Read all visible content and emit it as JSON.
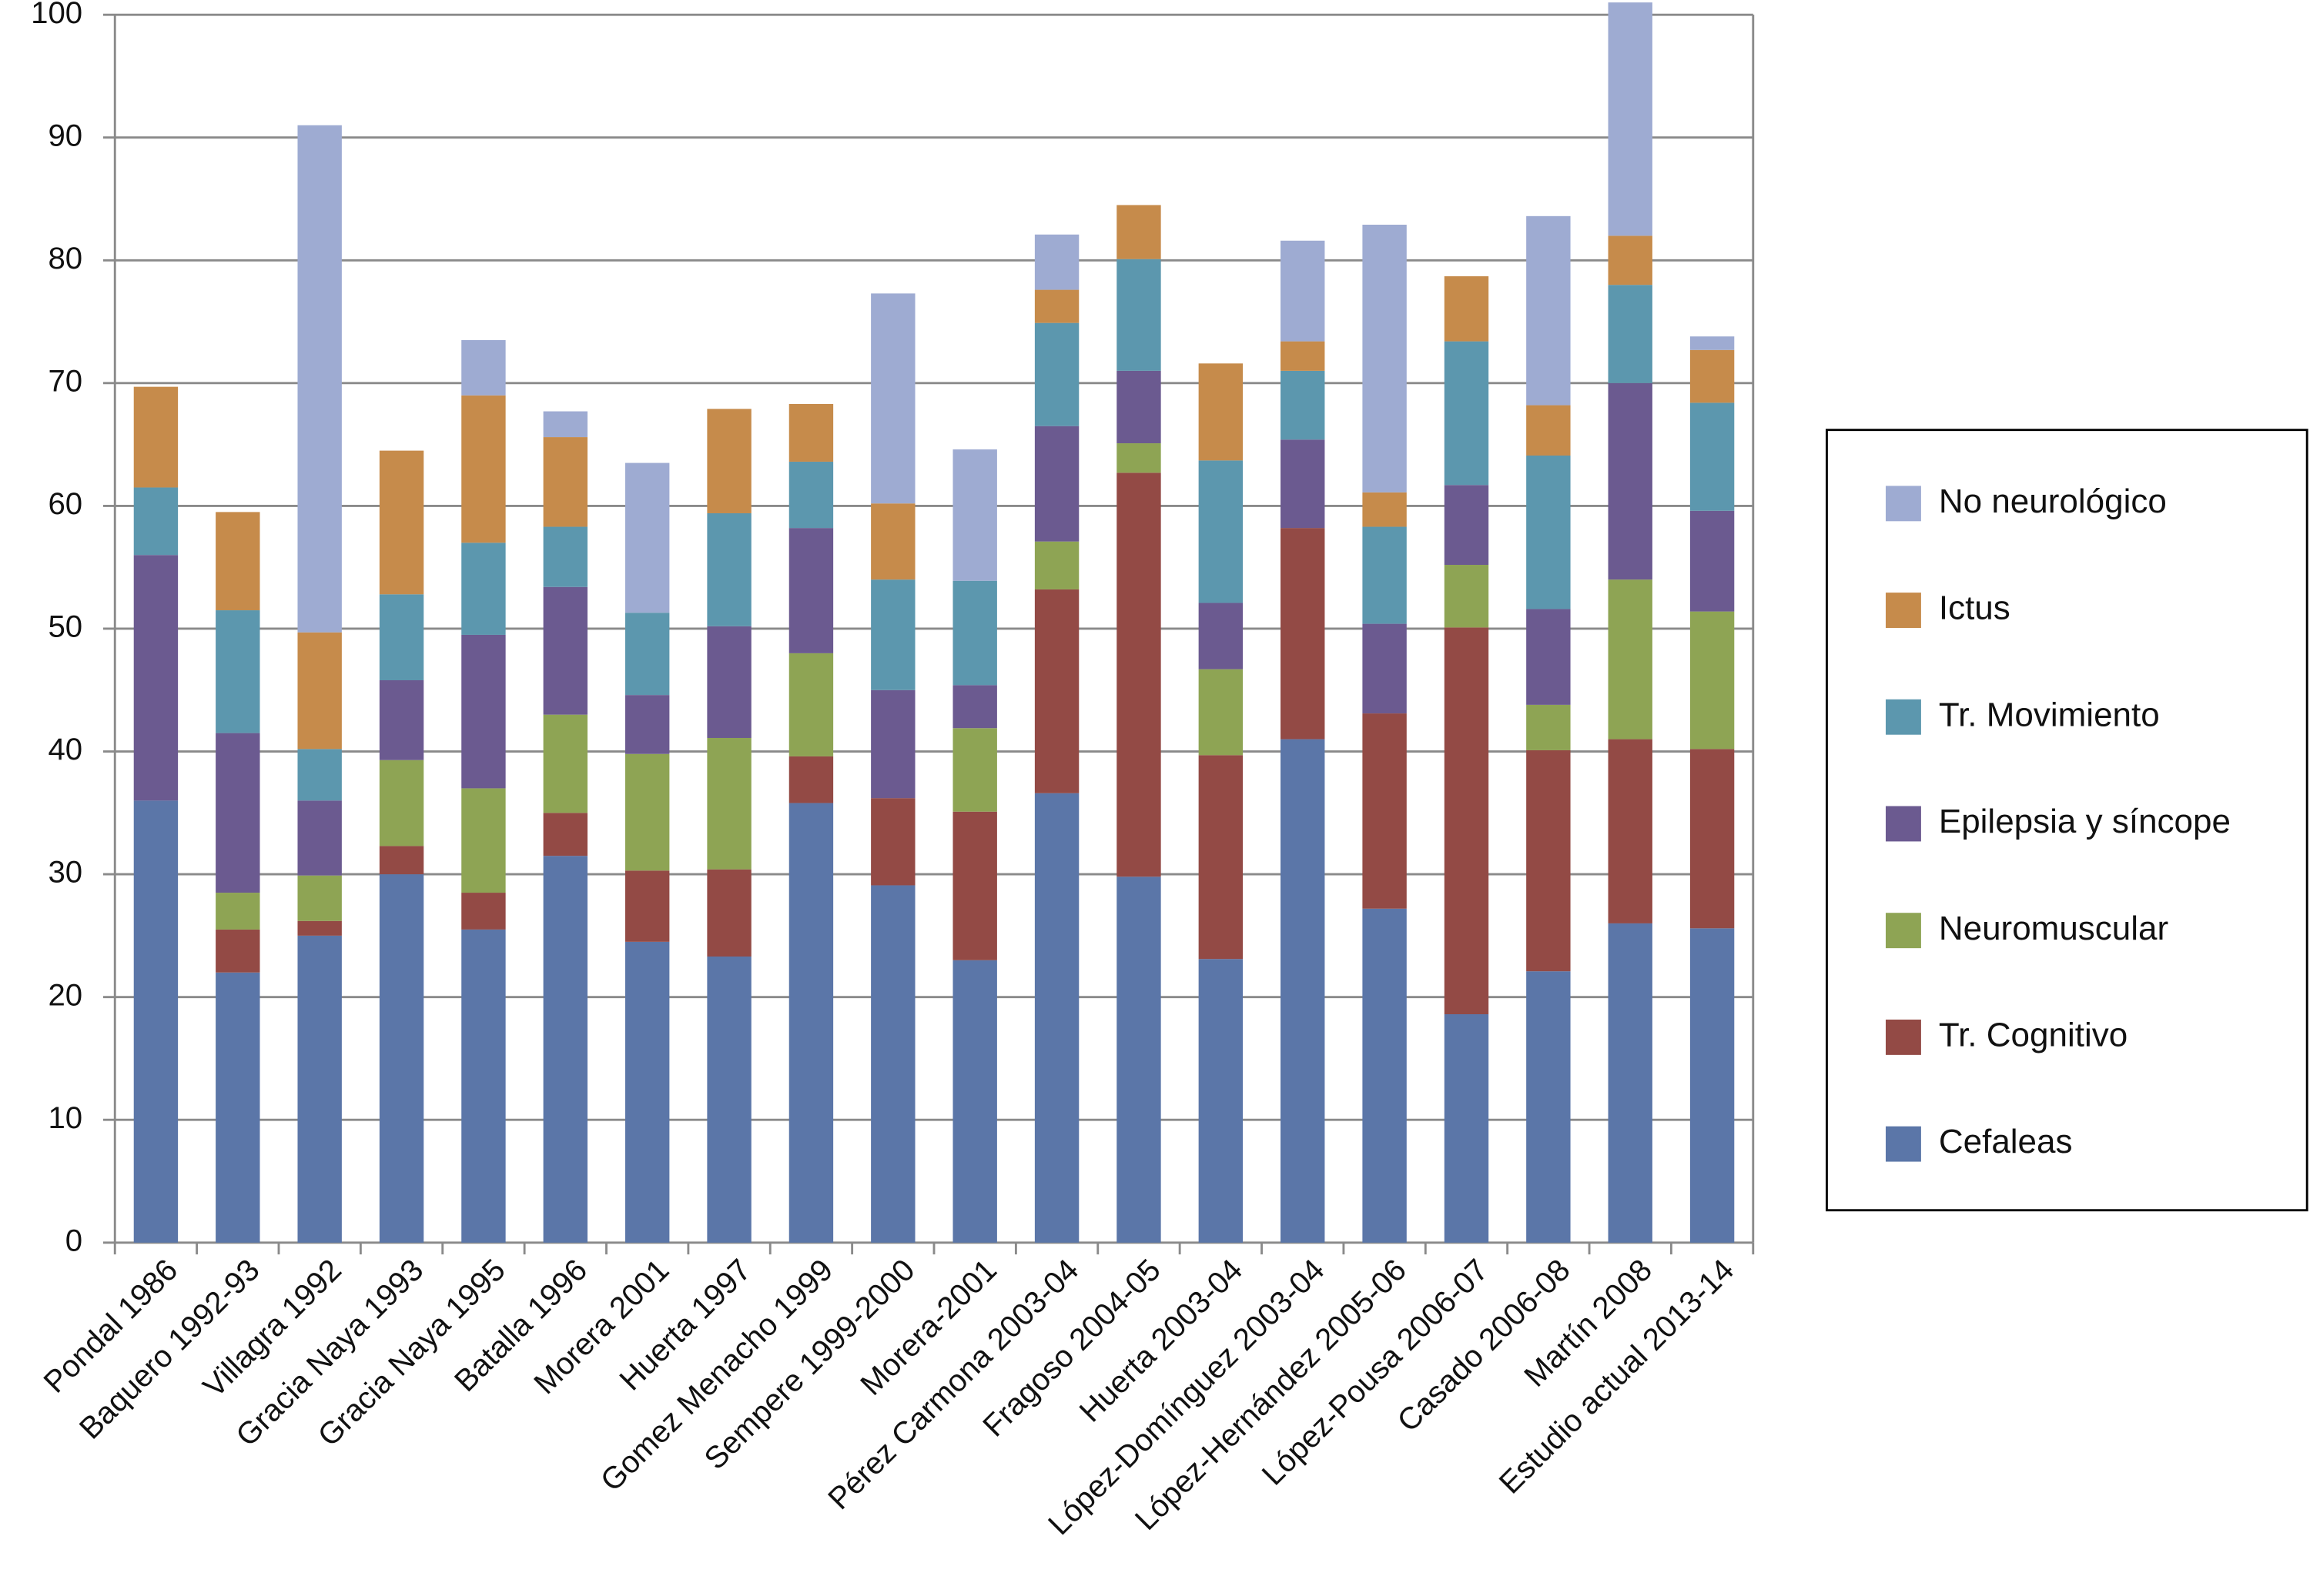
{
  "chart_data": {
    "type": "stacked_bar",
    "categories": [
      "Pondal 1986",
      "Baquero 1992-93",
      "Villagra 1992",
      "Gracia Naya 1993",
      "Gracia Naya 1995",
      "Batalla 1996",
      "Morera 2001",
      "Huerta 1997",
      "Gomez Menacho 1999",
      "Sempere 1999-2000",
      "Morera-2001",
      "Pérez Carmona 2003-04",
      "Fragoso 2004-05",
      "Huerta 2003-04",
      "López-Domínguez 2003-04",
      "López-Hernández 2005-06",
      "López-Pousa 2006-07",
      "Casado 2006-08",
      "Martín 2008",
      "Estudio actual 2013-14"
    ],
    "series": [
      {
        "name": "Cefaleas",
        "color": "#5b76a8",
        "values": [
          36,
          22,
          25,
          30,
          25.5,
          31.5,
          24.5,
          23.3,
          35.8,
          29.1,
          23,
          36.6,
          29.8,
          23.1,
          41,
          27.2,
          18.6,
          22.1,
          26,
          25.6
        ]
      },
      {
        "name": "Tr. Cognitivo",
        "color": "#934a45",
        "values": [
          0,
          3.5,
          1.2,
          2.3,
          3,
          3.5,
          5.8,
          7.1,
          3.8,
          7.1,
          12.1,
          16.6,
          32.9,
          16.6,
          17.2,
          15.9,
          31.5,
          18,
          15,
          14.6
        ]
      },
      {
        "name": "Neuromuscular",
        "color": "#8ea454",
        "values": [
          0,
          3,
          3.7,
          7,
          8.5,
          8,
          9.5,
          10.7,
          8.4,
          0,
          6.8,
          3.9,
          2.4,
          7,
          0,
          0,
          5.1,
          3.7,
          13,
          11.2
        ]
      },
      {
        "name": "Epilepsia y síncope",
        "color": "#6b5a90",
        "values": [
          20,
          13,
          6.1,
          6.5,
          12.5,
          10.4,
          4.8,
          9.1,
          10.2,
          8.8,
          3.5,
          9.4,
          5.9,
          5.4,
          7.2,
          7.3,
          6.5,
          7.8,
          16,
          8.2
        ]
      },
      {
        "name": "Tr. Movimiento",
        "color": "#5c97ae",
        "values": [
          5.5,
          10,
          4.2,
          7,
          7.5,
          4.9,
          6.7,
          9.2,
          5.4,
          9,
          8.5,
          8.4,
          9.1,
          11.6,
          5.6,
          7.9,
          11.7,
          12.5,
          8,
          8.8
        ]
      },
      {
        "name": "Ictus",
        "color": "#c68b4b",
        "values": [
          8.2,
          8,
          9.5,
          11.7,
          12,
          7.3,
          0,
          8.5,
          4.7,
          6.2,
          0,
          2.7,
          4.4,
          7.9,
          2.4,
          2.8,
          5.3,
          4.1,
          4,
          4.3
        ]
      },
      {
        "name": "No neurológico",
        "color": "#9eabd2",
        "values": [
          0,
          0,
          41.3,
          0,
          4.5,
          2.1,
          12.2,
          0,
          0,
          17.1,
          10.7,
          4.5,
          0,
          0,
          8.2,
          21.8,
          0,
          15.4,
          19,
          1.1
        ]
      }
    ],
    "ylim": [
      0,
      100
    ],
    "yticks": [
      0,
      10,
      20,
      30,
      40,
      50,
      60,
      70,
      80,
      90,
      100
    ],
    "grid": true,
    "legend": "right"
  }
}
